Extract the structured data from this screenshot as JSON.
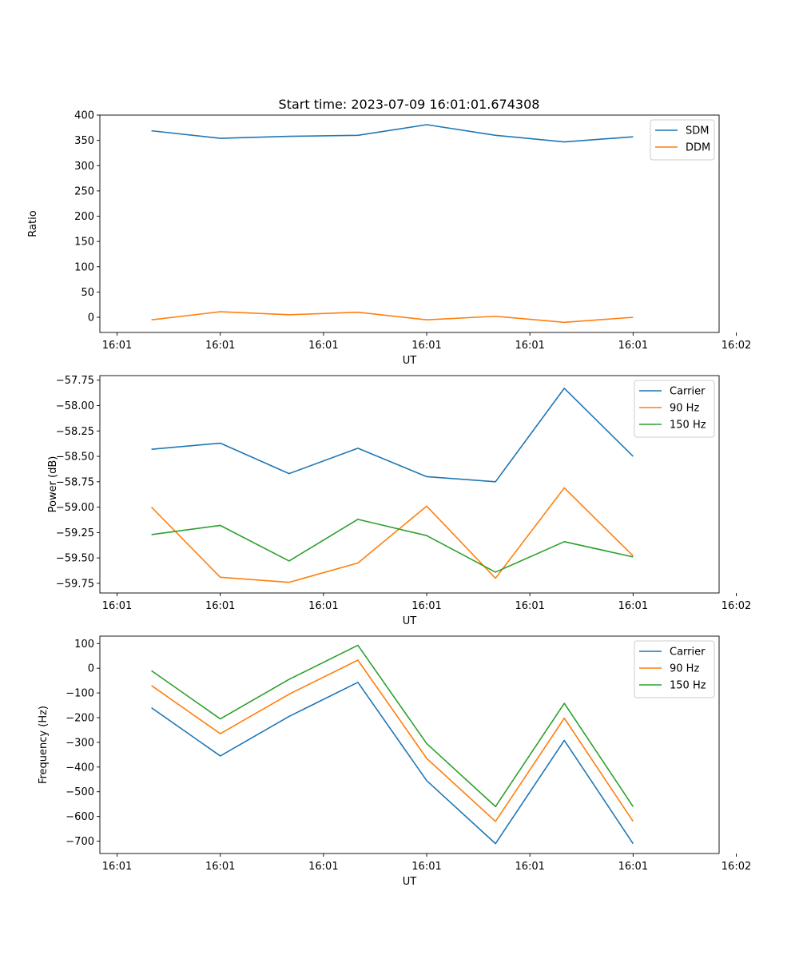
{
  "chart_data": [
    {
      "type": "line",
      "title": "Start time: 2023-07-09 16:01:01.674308",
      "xlabel": "UT",
      "ylabel": "Ratio",
      "x": [
        0,
        1,
        2,
        3,
        4,
        5,
        6,
        7
      ],
      "xlim": [
        -0.75,
        8.25
      ],
      "x_ticks": [
        -0.5,
        1.0,
        2.5,
        4.0,
        5.5,
        7.0,
        8.5
      ],
      "x_tick_labels": [
        "16:01",
        "16:01",
        "16:01",
        "16:01",
        "16:01",
        "16:01",
        "16:02"
      ],
      "ylim": [
        -30,
        400
      ],
      "y_ticks": [
        0,
        50,
        100,
        150,
        200,
        250,
        300,
        350,
        400
      ],
      "legend_position": "top-right",
      "series": [
        {
          "name": "SDM",
          "color": "#1f77b4",
          "values": [
            369,
            354,
            358,
            360,
            381,
            360,
            347,
            357
          ]
        },
        {
          "name": "DDM",
          "color": "#ff7f0e",
          "values": [
            -5,
            11,
            5,
            10,
            -5,
            2,
            -10,
            0
          ]
        }
      ]
    },
    {
      "type": "line",
      "xlabel": "UT",
      "ylabel": "Power (dB)",
      "x": [
        0,
        1,
        2,
        3,
        4,
        5,
        6,
        7
      ],
      "xlim": [
        -0.75,
        8.25
      ],
      "x_ticks": [
        -0.5,
        1.0,
        2.5,
        4.0,
        5.5,
        7.0,
        8.5
      ],
      "x_tick_labels": [
        "16:01",
        "16:01",
        "16:01",
        "16:01",
        "16:01",
        "16:01",
        "16:02"
      ],
      "ylim": [
        -59.845,
        -57.705
      ],
      "y_ticks": [
        -59.75,
        -59.5,
        -59.25,
        -59.0,
        -58.75,
        -58.5,
        -58.25,
        -58.0,
        -57.75
      ],
      "y_tick_labels": [
        "−59.75",
        "−59.50",
        "−59.25",
        "−59.00",
        "−58.75",
        "−58.50",
        "−58.25",
        "−58.00",
        "−57.75"
      ],
      "legend_position": "top-right",
      "series": [
        {
          "name": "Carrier",
          "color": "#1f77b4",
          "values": [
            -58.43,
            -58.37,
            -58.67,
            -58.42,
            -58.7,
            -58.75,
            -57.83,
            -58.5
          ]
        },
        {
          "name": "90 Hz",
          "color": "#ff7f0e",
          "values": [
            -59.0,
            -59.69,
            -59.74,
            -59.55,
            -58.99,
            -59.7,
            -58.81,
            -59.48
          ]
        },
        {
          "name": "150 Hz",
          "color": "#2ca02c",
          "values": [
            -59.27,
            -59.18,
            -59.53,
            -59.12,
            -59.28,
            -59.64,
            -59.34,
            -59.49
          ]
        }
      ]
    },
    {
      "type": "line",
      "xlabel": "UT",
      "ylabel": "Frequency (Hz)",
      "x": [
        0,
        1,
        2,
        3,
        4,
        5,
        6,
        7
      ],
      "xlim": [
        -0.75,
        8.25
      ],
      "x_ticks": [
        -0.5,
        1.0,
        2.5,
        4.0,
        5.5,
        7.0,
        8.5
      ],
      "x_tick_labels": [
        "16:01",
        "16:01",
        "16:01",
        "16:01",
        "16:01",
        "16:01",
        "16:02"
      ],
      "ylim": [
        -750,
        130
      ],
      "y_ticks": [
        -700,
        -600,
        -500,
        -400,
        -300,
        -200,
        -100,
        0,
        100
      ],
      "y_tick_labels": [
        "−700",
        "−600",
        "−500",
        "−400",
        "−300",
        "−200",
        "−100",
        "0",
        "100"
      ],
      "legend_position": "top-right",
      "series": [
        {
          "name": "Carrier",
          "color": "#1f77b4",
          "values": [
            -160,
            -355,
            -195,
            -57,
            -455,
            -710,
            -292,
            -710
          ]
        },
        {
          "name": "90 Hz",
          "color": "#ff7f0e",
          "values": [
            -70,
            -265,
            -105,
            33,
            -365,
            -620,
            -202,
            -620
          ]
        },
        {
          "name": "150 Hz",
          "color": "#2ca02c",
          "values": [
            -10,
            -205,
            -45,
            93,
            -305,
            -560,
            -142,
            -560
          ]
        }
      ]
    }
  ]
}
